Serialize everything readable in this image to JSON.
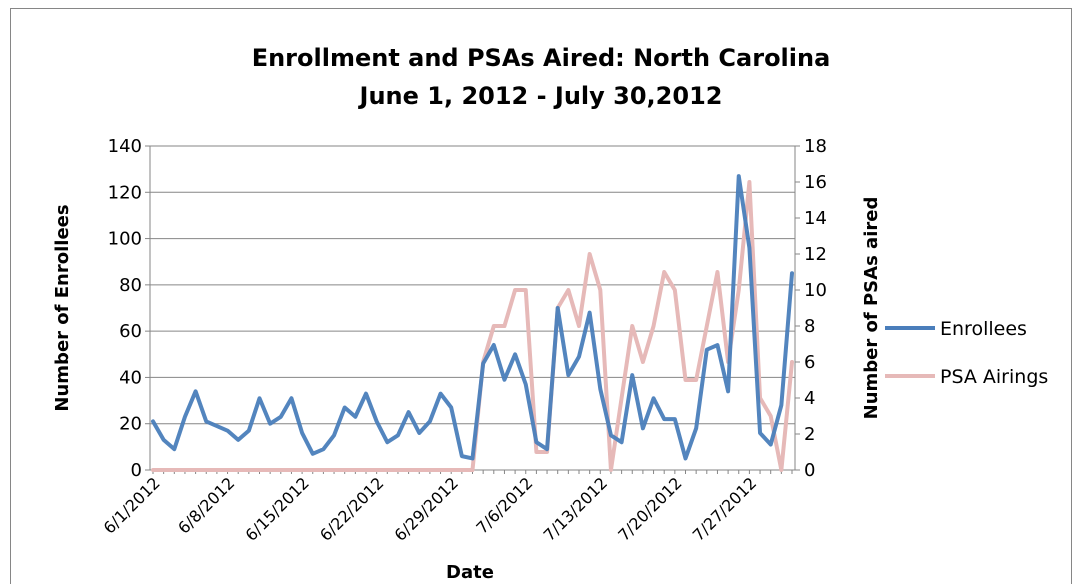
{
  "chart_data": {
    "type": "line",
    "title": "Enrollment and PSAs Aired: North Carolina",
    "subtitle": "June 1, 2012  - July 30,2012",
    "xlabel": "Date",
    "ylabel_left": "Number of Enrollees",
    "ylabel_right": "Number of PSAs aired",
    "x_start": "6/1/2012",
    "x_end": "7/30/2012",
    "x_tick_labels": [
      "6/1/2012",
      "6/8/2012",
      "6/15/2012",
      "6/22/2012",
      "6/29/2012",
      "7/6/2012",
      "7/13/2012",
      "7/20/2012",
      "7/27/2012"
    ],
    "x_tick_dates": [
      "6/1/2012",
      "6/8/2012",
      "6/15/2012",
      "6/22/2012",
      "6/29/2012",
      "7/6/2012",
      "7/13/2012",
      "7/20/2012",
      "7/27/2012"
    ],
    "ylim_left": [
      0,
      140
    ],
    "yticks_left": [
      0,
      20,
      40,
      60,
      80,
      100,
      120,
      140
    ],
    "ylim_right": [
      0,
      18
    ],
    "yticks_right": [
      0,
      2,
      4,
      6,
      8,
      10,
      12,
      14,
      16,
      18
    ],
    "grid": "horizontal",
    "legend_position": "right",
    "series": [
      {
        "name": "Enrollees",
        "axis": "left",
        "color": "#4a7ebb",
        "values": [
          21,
          13,
          9,
          23,
          34,
          21,
          19,
          17,
          13,
          17,
          31,
          20,
          23,
          31,
          16,
          7,
          9,
          15,
          27,
          23,
          33,
          21,
          12,
          15,
          25,
          16,
          21,
          33,
          27,
          6,
          5,
          46,
          54,
          39,
          50,
          37,
          12,
          9,
          70,
          41,
          49,
          68,
          35,
          15,
          12,
          41,
          18,
          31,
          22,
          22,
          5,
          18,
          52,
          54,
          34,
          127,
          96,
          16,
          11,
          28,
          85
        ]
      },
      {
        "name": "PSA Airings",
        "axis": "right",
        "color": "#e6b9b8",
        "values": [
          0,
          0,
          0,
          0,
          0,
          0,
          0,
          0,
          0,
          0,
          0,
          0,
          0,
          0,
          0,
          0,
          0,
          0,
          0,
          0,
          0,
          0,
          0,
          0,
          0,
          0,
          0,
          0,
          0,
          0,
          0,
          6,
          8,
          8,
          10,
          10,
          1,
          1,
          9,
          10,
          8,
          12,
          10,
          0,
          4,
          8,
          6,
          8,
          11,
          10,
          5,
          5,
          8,
          11,
          6,
          10,
          16,
          4,
          3,
          0,
          6
        ]
      }
    ]
  }
}
